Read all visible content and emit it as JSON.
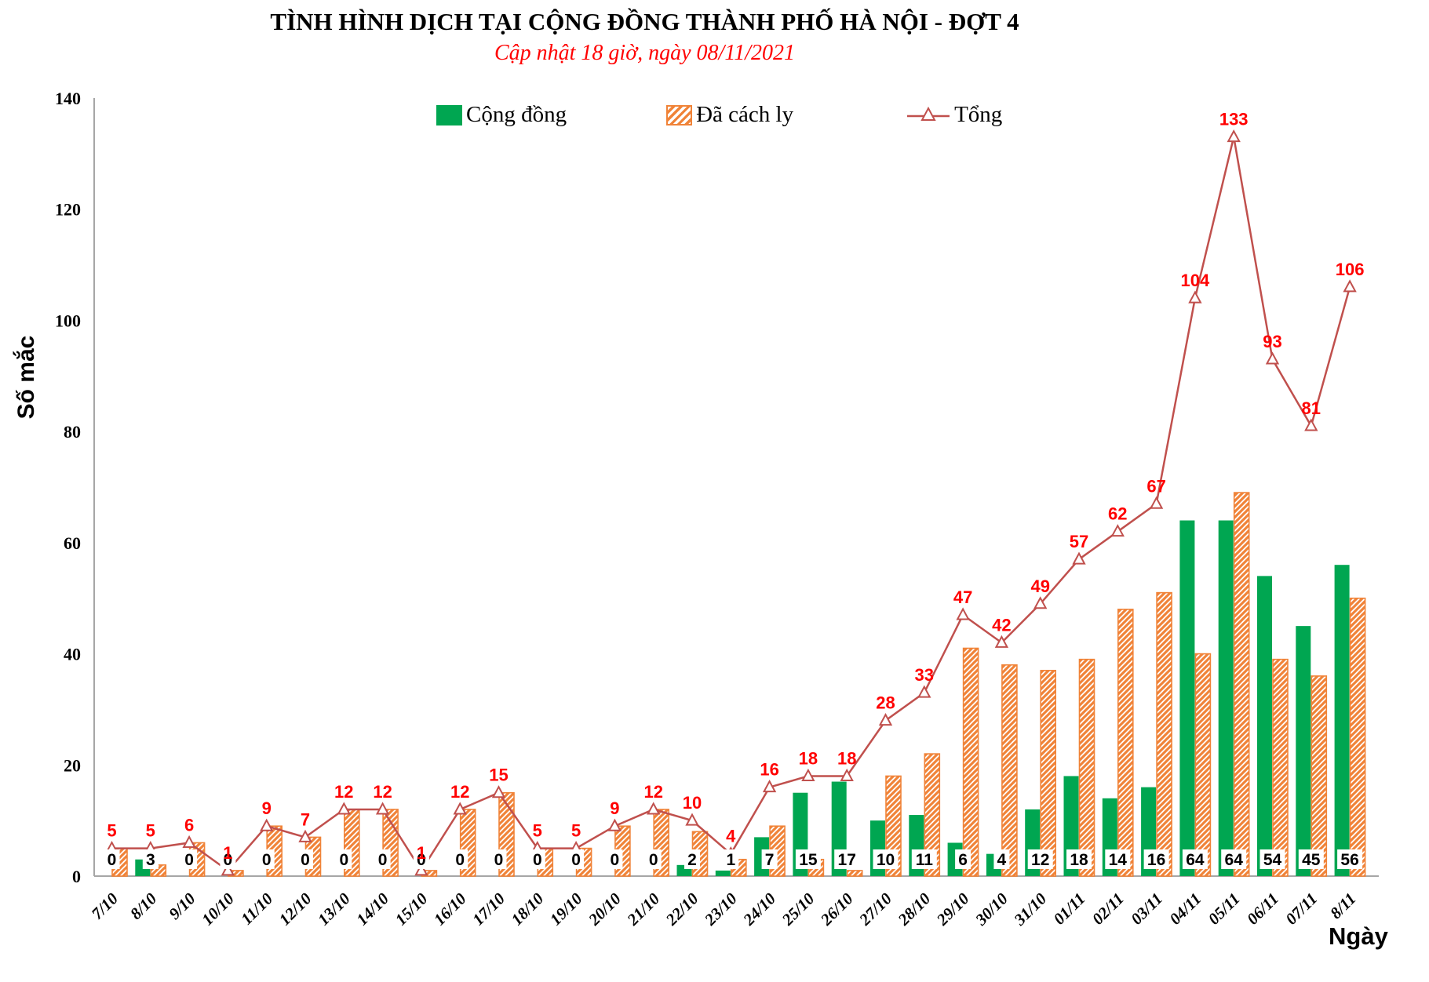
{
  "title": "TÌNH HÌNH DỊCH TẠI CỘNG ĐỒNG THÀNH PHỐ HÀ NỘI - ĐỢT 4",
  "subtitle": "Cập nhật 18 giờ, ngày 08/11/2021",
  "legend": {
    "community": "Cộng đồng",
    "quarantined": "Đã cách ly",
    "total": "Tổng"
  },
  "axes": {
    "y_title": "Số mắc",
    "x_title": "Ngày",
    "y_ticks": [
      0,
      20,
      40,
      60,
      80,
      100,
      120,
      140
    ]
  },
  "colors": {
    "community": "#00A651",
    "quarantined": "#F08338",
    "total_line": "#C0504D",
    "total_label": "#FF0000",
    "bar_label": "#000000",
    "axis": "#A6A6A6"
  },
  "chart_data": {
    "type": "combo-bar-line",
    "title": "TÌNH HÌNH DỊCH TẠI CỘNG ĐỒNG THÀNH PHỐ HÀ NỘI - ĐỢT 4",
    "xlabel": "Ngày",
    "ylabel": "Số mắc",
    "ylim": [
      0,
      140
    ],
    "grid": false,
    "legend_position": "top-center",
    "categories": [
      "7/10",
      "8/10",
      "9/10",
      "10/10",
      "11/10",
      "12/10",
      "13/10",
      "14/10",
      "15/10",
      "16/10",
      "17/10",
      "18/10",
      "19/10",
      "20/10",
      "21/10",
      "22/10",
      "23/10",
      "24/10",
      "25/10",
      "26/10",
      "27/10",
      "28/10",
      "29/10",
      "30/10",
      "31/10",
      "01/11",
      "02/11",
      "03/11",
      "04/11",
      "05/11",
      "06/11",
      "07/11",
      "8/11"
    ],
    "series": [
      {
        "name": "Cộng đồng",
        "type": "bar",
        "style": "solid",
        "values": [
          0,
          3,
          0,
          0,
          0,
          0,
          0,
          0,
          0,
          0,
          0,
          0,
          0,
          0,
          0,
          2,
          1,
          7,
          15,
          17,
          10,
          11,
          6,
          4,
          12,
          18,
          14,
          16,
          64,
          64,
          54,
          45,
          56
        ]
      },
      {
        "name": "Đã cách ly",
        "type": "bar",
        "style": "hatched",
        "values": [
          5,
          2,
          6,
          1,
          9,
          7,
          12,
          12,
          1,
          12,
          15,
          5,
          5,
          9,
          12,
          8,
          3,
          9,
          3,
          1,
          18,
          22,
          41,
          38,
          37,
          39,
          48,
          51,
          40,
          69,
          39,
          36,
          50
        ]
      },
      {
        "name": "Tổng",
        "type": "line",
        "marker": "triangle-open",
        "values": [
          5,
          5,
          6,
          1,
          9,
          7,
          12,
          12,
          1,
          12,
          15,
          5,
          5,
          9,
          12,
          10,
          4,
          16,
          18,
          18,
          28,
          33,
          47,
          42,
          49,
          57,
          62,
          67,
          104,
          133,
          93,
          81,
          106
        ]
      }
    ],
    "bar_labels_shown": "Cộng đồng values in black boxes at axis; Tổng values in red above line"
  }
}
